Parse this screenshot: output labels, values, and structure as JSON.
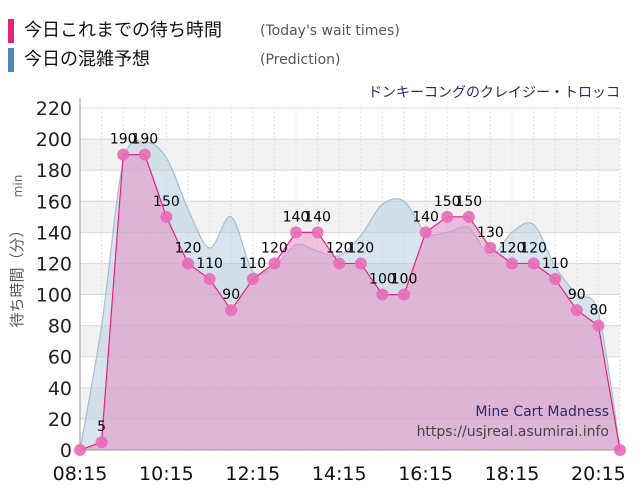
{
  "legend": {
    "wait": {
      "label": "今日これまでの待ち時間",
      "sub": "(Today's wait times)",
      "color": "#e8207f"
    },
    "prediction": {
      "label": "今日の混雑予想",
      "sub": "(Prediction)",
      "color": "#4f86b8"
    }
  },
  "ride_title": "ドンキーコングのクレイジー・トロッコ",
  "watermark": {
    "name": "Mine Cart Madness",
    "url": "https://usjreal.asumirai.info"
  },
  "chart_data": {
    "type": "area",
    "ylabel": "待ち時間（分）",
    "yunit": "min",
    "ylim": [
      0,
      220
    ],
    "yticks": [
      0,
      20,
      40,
      60,
      80,
      100,
      120,
      140,
      160,
      180,
      200,
      220
    ],
    "xlim": [
      "08:15",
      "20:45"
    ],
    "xticks": [
      "08:15",
      "10:15",
      "12:15",
      "14:15",
      "16:15",
      "18:15",
      "20:15"
    ],
    "grid": true,
    "colors": {
      "wait_line": "#e8207f",
      "wait_fill": "#e58fc7",
      "wait_marker": "#e86bb8",
      "pred_fill": "#b8cfe0",
      "pred_line": "#a6bdd3"
    },
    "series": [
      {
        "name": "今日これまでの待ち時間",
        "x": [
          "08:15",
          "08:45",
          "09:15",
          "09:45",
          "10:15",
          "10:45",
          "11:15",
          "11:45",
          "12:15",
          "12:45",
          "13:15",
          "13:45",
          "14:15",
          "14:45",
          "15:15",
          "15:45",
          "16:15",
          "16:45",
          "17:15",
          "17:45",
          "18:15",
          "18:45",
          "19:15",
          "19:45",
          "20:15",
          "20:45"
        ],
        "values": [
          0,
          5,
          190,
          190,
          150,
          120,
          110,
          90,
          110,
          120,
          140,
          140,
          120,
          120,
          100,
          100,
          140,
          150,
          150,
          130,
          120,
          120,
          110,
          90,
          80,
          0
        ]
      },
      {
        "name": "今日の混雑予想",
        "x": [
          "08:15",
          "08:45",
          "09:15",
          "09:45",
          "10:15",
          "10:45",
          "11:15",
          "11:45",
          "12:15",
          "12:45",
          "13:15",
          "13:45",
          "14:15",
          "14:45",
          "15:15",
          "15:45",
          "16:15",
          "16:45",
          "17:15",
          "17:45",
          "18:15",
          "18:45",
          "19:15",
          "19:45",
          "20:15",
          "20:45"
        ],
        "values": [
          0,
          80,
          185,
          198,
          188,
          155,
          130,
          150,
          115,
          118,
          132,
          128,
          125,
          138,
          158,
          160,
          140,
          140,
          143,
          125,
          140,
          145,
          118,
          100,
          88,
          0
        ]
      }
    ]
  }
}
